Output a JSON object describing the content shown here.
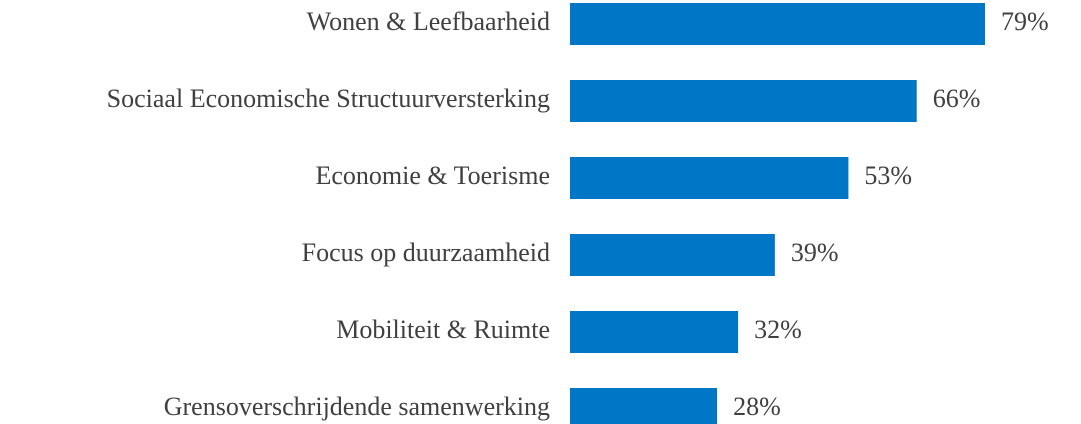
{
  "chart_data": {
    "type": "bar",
    "orientation": "horizontal",
    "categories": [
      "Wonen & Leefbaarheid",
      "Sociaal Economische Structuurversterking",
      "Economie & Toerisme",
      "Focus op duurzaamheid",
      "Mobiliteit & Ruimte",
      "Grensoverschrijdende samenwerking"
    ],
    "values": [
      79,
      66,
      53,
      39,
      32,
      28
    ],
    "value_labels": [
      "79%",
      "66%",
      "53%",
      "39%",
      "32%",
      "28%"
    ],
    "color": "#0076c6"
  }
}
